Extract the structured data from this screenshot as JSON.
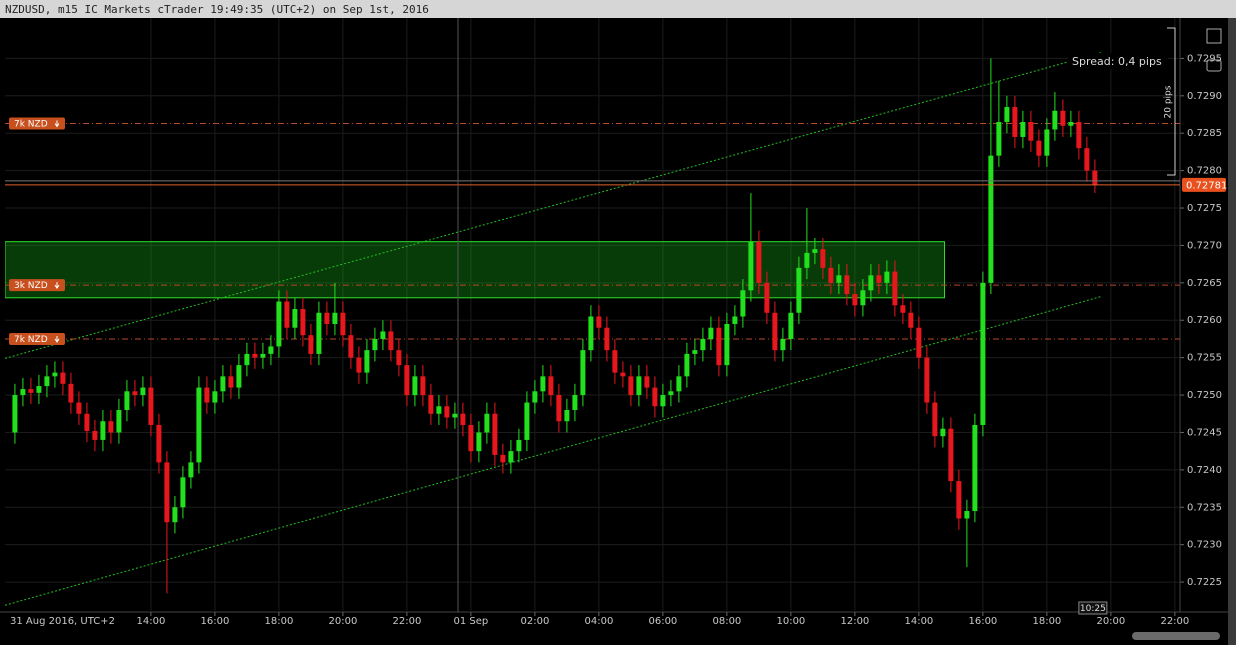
{
  "chart_data": {
    "type": "candlestick",
    "title": "NZDUSD, m15 IC Markets cTrader 19:49:35 (UTC+2) on Sep 1st, 2016",
    "x_start_label": "31 Aug 2016, UTC+2",
    "x": [
      9.75,
      10,
      10.25,
      10.5,
      10.75,
      11,
      11.25,
      11.5,
      11.75,
      12,
      12.25,
      12.5,
      12.75,
      13,
      13.25,
      13.5,
      13.75,
      14,
      14.25,
      14.5,
      14.75,
      15,
      15.25,
      15.5,
      15.75,
      16,
      16.25,
      16.5,
      16.75,
      17,
      17.25,
      17.5,
      17.75,
      18,
      18.25,
      18.5,
      18.75,
      19,
      19.25,
      19.5,
      19.75,
      20,
      20.25,
      20.5,
      20.75,
      21,
      21.25,
      21.5,
      21.75,
      22,
      22.25,
      22.5,
      22.75,
      23,
      23.25,
      23.5,
      23.75,
      24,
      24.25,
      24.5,
      24.75,
      25,
      25.25,
      25.5,
      25.75,
      26,
      26.25,
      26.5,
      26.75,
      27,
      27.25,
      27.5,
      27.75,
      28,
      28.25,
      28.5,
      28.75,
      29,
      29.25,
      29.5,
      29.75,
      30,
      30.25,
      30.5,
      30.75,
      31,
      31.25,
      31.5,
      31.75,
      32,
      32.25,
      32.5,
      32.75,
      33,
      33.25,
      33.5,
      33.75,
      34,
      34.25,
      34.5,
      34.75,
      35,
      35.25,
      35.5,
      35.75,
      36,
      36.25,
      36.5,
      36.75,
      37,
      37.25,
      37.5,
      37.75,
      38,
      38.25,
      38.5,
      38.75,
      39,
      39.25,
      39.5,
      39.75,
      40,
      40.25,
      40.5,
      40.75,
      41,
      41.25,
      41.5,
      41.75,
      42,
      42.25,
      42.5,
      42.75,
      43,
      43.25,
      43.5
    ],
    "open": [
      0.7245,
      0.725,
      0.72508,
      0.72503,
      0.72512,
      0.72525,
      0.7253,
      0.72515,
      0.7249,
      0.72475,
      0.72452,
      0.7244,
      0.72465,
      0.7245,
      0.7248,
      0.72505,
      0.725,
      0.7251,
      0.7246,
      0.7241,
      0.7233,
      0.7235,
      0.7239,
      0.7241,
      0.7251,
      0.7249,
      0.72505,
      0.72525,
      0.7251,
      0.7254,
      0.72555,
      0.7255,
      0.72555,
      0.72565,
      0.72625,
      0.7259,
      0.72615,
      0.7258,
      0.72555,
      0.7261,
      0.72595,
      0.7261,
      0.7258,
      0.7255,
      0.7253,
      0.7256,
      0.72575,
      0.72585,
      0.7256,
      0.7254,
      0.725,
      0.72525,
      0.725,
      0.72475,
      0.72485,
      0.7247,
      0.72475,
      0.7246,
      0.72425,
      0.7245,
      0.72475,
      0.7242,
      0.7241,
      0.72425,
      0.7244,
      0.7249,
      0.72505,
      0.72525,
      0.725,
      0.72465,
      0.7248,
      0.725,
      0.7256,
      0.72605,
      0.7259,
      0.7256,
      0.7253,
      0.72525,
      0.725,
      0.72525,
      0.7251,
      0.72485,
      0.725,
      0.72505,
      0.72525,
      0.72555,
      0.7256,
      0.72575,
      0.7259,
      0.7254,
      0.72595,
      0.72605,
      0.7264,
      0.72705,
      0.7265,
      0.7261,
      0.7256,
      0.72575,
      0.7261,
      0.7267,
      0.7269,
      0.72695,
      0.7267,
      0.7265,
      0.7266,
      0.72635,
      0.7262,
      0.7264,
      0.7266,
      0.7265,
      0.72665,
      0.7262,
      0.7261,
      0.7259,
      0.7255,
      0.7249,
      0.72445,
      0.72455,
      0.72385,
      0.72335,
      0.72345,
      0.7246,
      0.7265,
      0.7282,
      0.72865,
      0.72885,
      0.72845,
      0.72865,
      0.7284,
      0.7282,
      0.72855,
      0.7288,
      0.7286,
      0.72865,
      0.7283,
      0.728
    ],
    "high": [
      0.72515,
      0.72523,
      0.72523,
      0.72527,
      0.7254,
      0.72545,
      0.72545,
      0.7253,
      0.72505,
      0.7249,
      0.72467,
      0.7248,
      0.7248,
      0.72495,
      0.7252,
      0.7252,
      0.72525,
      0.72525,
      0.72475,
      0.72425,
      0.72365,
      0.72405,
      0.72425,
      0.72525,
      0.72525,
      0.7252,
      0.7254,
      0.7254,
      0.72555,
      0.7257,
      0.7257,
      0.7257,
      0.7258,
      0.7264,
      0.7264,
      0.7263,
      0.7263,
      0.72595,
      0.72625,
      0.72625,
      0.7265,
      0.72625,
      0.72595,
      0.72565,
      0.72575,
      0.7259,
      0.726,
      0.726,
      0.72575,
      0.72555,
      0.7254,
      0.7254,
      0.72515,
      0.725,
      0.725,
      0.7249,
      0.7249,
      0.72475,
      0.72465,
      0.7249,
      0.7249,
      0.72435,
      0.7244,
      0.72455,
      0.72505,
      0.7252,
      0.7254,
      0.7254,
      0.72515,
      0.72495,
      0.72515,
      0.72575,
      0.7262,
      0.7262,
      0.72605,
      0.72575,
      0.72545,
      0.7254,
      0.7254,
      0.7254,
      0.72525,
      0.72515,
      0.7252,
      0.7254,
      0.7257,
      0.72575,
      0.7259,
      0.72605,
      0.72605,
      0.7261,
      0.7262,
      0.72655,
      0.7277,
      0.7272,
      0.72665,
      0.72625,
      0.7259,
      0.72625,
      0.72685,
      0.7275,
      0.7271,
      0.7271,
      0.72685,
      0.72675,
      0.72675,
      0.7265,
      0.72655,
      0.72675,
      0.72675,
      0.7268,
      0.7268,
      0.72635,
      0.72625,
      0.72605,
      0.72565,
      0.72505,
      0.7247,
      0.7247,
      0.724,
      0.7236,
      0.72475,
      0.72665,
      0.7295,
      0.7292,
      0.729,
      0.729,
      0.7288,
      0.7288,
      0.72855,
      0.7287,
      0.72905,
      0.72895,
      0.7288,
      0.7288,
      0.72845,
      0.72815
    ],
    "low": [
      0.72435,
      0.72485,
      0.72488,
      0.72488,
      0.72497,
      0.7251,
      0.725,
      0.72475,
      0.7246,
      0.72437,
      0.72425,
      0.72425,
      0.72435,
      0.72435,
      0.72465,
      0.72485,
      0.72485,
      0.72445,
      0.72395,
      0.72235,
      0.72315,
      0.72335,
      0.72375,
      0.72395,
      0.72475,
      0.72475,
      0.7249,
      0.72495,
      0.72495,
      0.72525,
      0.72535,
      0.72535,
      0.7254,
      0.7255,
      0.72575,
      0.72575,
      0.72565,
      0.7254,
      0.7254,
      0.7258,
      0.7258,
      0.72565,
      0.72535,
      0.72515,
      0.72515,
      0.72545,
      0.7256,
      0.72545,
      0.72525,
      0.72485,
      0.72485,
      0.72485,
      0.7246,
      0.7246,
      0.72455,
      0.72455,
      0.72445,
      0.7241,
      0.7241,
      0.72435,
      0.72405,
      0.72395,
      0.72395,
      0.7241,
      0.72425,
      0.72475,
      0.7249,
      0.72485,
      0.7245,
      0.7245,
      0.72465,
      0.72485,
      0.72545,
      0.72575,
      0.72545,
      0.72515,
      0.7251,
      0.72485,
      0.72485,
      0.72495,
      0.7247,
      0.7247,
      0.72485,
      0.7249,
      0.7251,
      0.7254,
      0.72545,
      0.7256,
      0.72525,
      0.72525,
      0.7258,
      0.7259,
      0.72625,
      0.72635,
      0.72595,
      0.72545,
      0.72545,
      0.7256,
      0.72595,
      0.72655,
      0.72675,
      0.72655,
      0.72635,
      0.72635,
      0.7262,
      0.72605,
      0.72605,
      0.72625,
      0.72635,
      0.72635,
      0.72605,
      0.72595,
      0.72575,
      0.72535,
      0.72475,
      0.7243,
      0.7243,
      0.7237,
      0.7232,
      0.7227,
      0.7233,
      0.72445,
      0.72635,
      0.72805,
      0.7285,
      0.7283,
      0.7283,
      0.72825,
      0.72805,
      0.72805,
      0.7284,
      0.72845,
      0.72845,
      0.72815,
      0.72785,
      0.7277
    ],
    "close": [
      0.725,
      0.72508,
      0.72503,
      0.72512,
      0.72525,
      0.7253,
      0.72515,
      0.7249,
      0.72475,
      0.72452,
      0.7244,
      0.72465,
      0.7245,
      0.7248,
      0.72505,
      0.725,
      0.7251,
      0.7246,
      0.7241,
      0.7233,
      0.7235,
      0.7239,
      0.7241,
      0.7251,
      0.7249,
      0.72505,
      0.72525,
      0.7251,
      0.7254,
      0.72555,
      0.7255,
      0.72555,
      0.72565,
      0.72625,
      0.7259,
      0.72615,
      0.7258,
      0.72555,
      0.7261,
      0.72595,
      0.7261,
      0.7258,
      0.7255,
      0.7253,
      0.7256,
      0.72575,
      0.72585,
      0.7256,
      0.7254,
      0.725,
      0.72525,
      0.725,
      0.72475,
      0.72485,
      0.7247,
      0.72475,
      0.7246,
      0.72425,
      0.7245,
      0.72475,
      0.7242,
      0.7241,
      0.72425,
      0.7244,
      0.7249,
      0.72505,
      0.72525,
      0.725,
      0.72465,
      0.7248,
      0.725,
      0.7256,
      0.72605,
      0.7259,
      0.7256,
      0.7253,
      0.72525,
      0.725,
      0.72525,
      0.7251,
      0.72485,
      0.725,
      0.72505,
      0.72525,
      0.72555,
      0.7256,
      0.72575,
      0.7259,
      0.7254,
      0.72595,
      0.72605,
      0.7264,
      0.72705,
      0.7265,
      0.7261,
      0.7256,
      0.72575,
      0.7261,
      0.7267,
      0.7269,
      0.72695,
      0.7267,
      0.7265,
      0.7266,
      0.72635,
      0.7262,
      0.7264,
      0.7266,
      0.7265,
      0.72665,
      0.7262,
      0.7261,
      0.7259,
      0.7255,
      0.7249,
      0.72445,
      0.72455,
      0.72385,
      0.72335,
      0.72345,
      0.7246,
      0.7265,
      0.7282,
      0.72865,
      0.72885,
      0.72845,
      0.72865,
      0.7284,
      0.7282,
      0.72855,
      0.7288,
      0.7286,
      0.72865,
      0.7283,
      0.728,
      0.72781
    ],
    "up_color": "#22e01e",
    "down_color": "#e8171e",
    "xlim": [
      9.44,
      46.16
    ],
    "ylim": [
      0.7221,
      0.73
    ],
    "xticks": [
      {
        "value": 14,
        "label": "14:00"
      },
      {
        "value": 16,
        "label": "16:00"
      },
      {
        "value": 18,
        "label": "18:00"
      },
      {
        "value": 20,
        "label": "20:00"
      },
      {
        "value": 22,
        "label": "22:00"
      },
      {
        "value": 24,
        "label": "01 Sep"
      },
      {
        "value": 26,
        "label": "02:00"
      },
      {
        "value": 28,
        "label": "04:00"
      },
      {
        "value": 30,
        "label": "06:00"
      },
      {
        "value": 32,
        "label": "08:00"
      },
      {
        "value": 34,
        "label": "10:00"
      },
      {
        "value": 36,
        "label": "12:00"
      },
      {
        "value": 38,
        "label": "14:00"
      },
      {
        "value": 40,
        "label": "16:00"
      },
      {
        "value": 42,
        "label": "18:00"
      },
      {
        "value": 44,
        "label": "20:00"
      },
      {
        "value": 46,
        "label": "22:00"
      }
    ],
    "yticks": [
      0.7225,
      {
        "value": 0.723,
        "label": "0.7230"
      },
      0.7235,
      {
        "value": 0.724,
        "label": "0.7240"
      },
      0.7245,
      {
        "value": 0.725,
        "label": "0.7250"
      },
      0.7255,
      {
        "value": 0.726,
        "label": "0.7260"
      },
      0.7265,
      {
        "value": 0.727,
        "label": "0.7270"
      },
      0.7275,
      {
        "value": 0.728,
        "label": "0.7280"
      },
      0.7285,
      {
        "value": 0.729,
        "label": "0.7290"
      },
      0.7295
    ],
    "grid": true,
    "current_price": 0.72781,
    "orders": [
      {
        "label": "7k NZD",
        "price": 0.72863
      },
      {
        "label": "3k NZD",
        "price": 0.72647
      },
      {
        "label": "7k NZD",
        "price": 0.72575
      }
    ],
    "zone": {
      "x": [
        9.44,
        38.8
      ],
      "price": [
        0.7263,
        0.72705
      ]
    },
    "trend_lines": [
      {
        "x": [
          9.44,
          43.72
        ],
        "price": [
          0.72549,
          0.72958
        ]
      },
      {
        "x": [
          9.44,
          43.72
        ],
        "price": [
          0.72219,
          0.72632
        ]
      }
    ],
    "spread_label": "Spread: 0,4 pips",
    "range_label": "20 pips",
    "countdown": "10:25"
  }
}
